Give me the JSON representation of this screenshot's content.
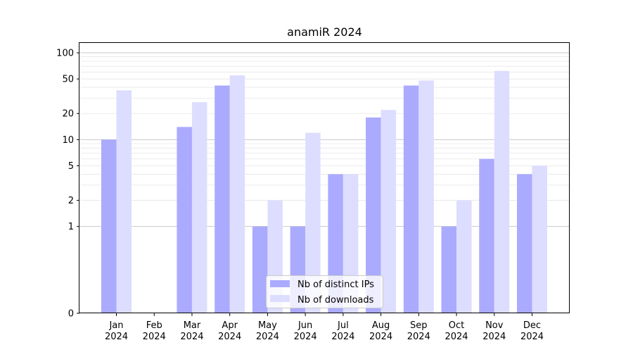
{
  "chart_data": {
    "type": "bar",
    "title": "anamiR 2024",
    "xlabel": "",
    "ylabel": "",
    "y_scale": "symlog",
    "yticks": [
      0,
      1,
      2,
      5,
      10,
      20,
      50,
      100
    ],
    "ylim": [
      0,
      130
    ],
    "categories": [
      [
        "Jan",
        "2024"
      ],
      [
        "Feb",
        "2024"
      ],
      [
        "Mar",
        "2024"
      ],
      [
        "Apr",
        "2024"
      ],
      [
        "May",
        "2024"
      ],
      [
        "Jun",
        "2024"
      ],
      [
        "Jul",
        "2024"
      ],
      [
        "Aug",
        "2024"
      ],
      [
        "Sep",
        "2024"
      ],
      [
        "Oct",
        "2024"
      ],
      [
        "Nov",
        "2024"
      ],
      [
        "Dec",
        "2024"
      ]
    ],
    "series": [
      {
        "name": "Nb of distinct IPs",
        "color": "#aaaaff",
        "values": [
          10,
          0,
          14,
          42,
          1,
          1,
          4,
          18,
          42,
          1,
          6,
          4
        ]
      },
      {
        "name": "Nb of downloads",
        "color": "#ddddff",
        "values": [
          37,
          0,
          27,
          55,
          2,
          12,
          4,
          22,
          48,
          2,
          62,
          5
        ]
      }
    ],
    "grid": true,
    "legend_position": "lower center"
  }
}
